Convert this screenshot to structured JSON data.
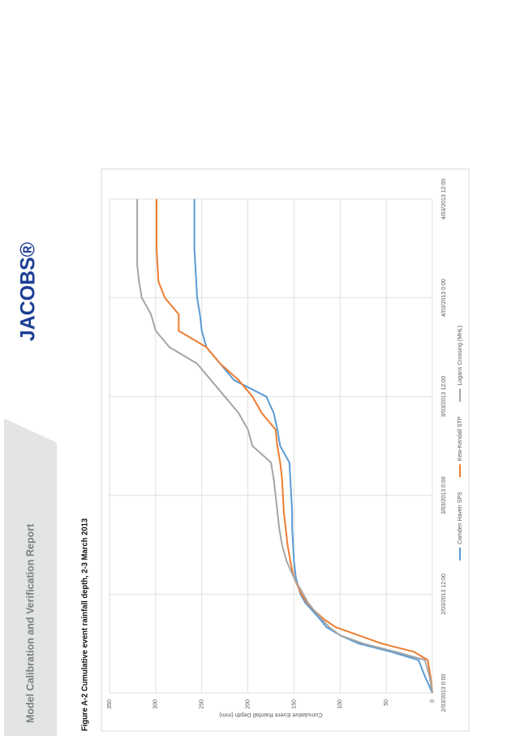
{
  "header": {
    "title": "Model Calibration and Verification Report",
    "logo": "JACOBS®"
  },
  "figure_caption": "Figure A-2 Cumulative event rainfall depth, 2-3 March 2013",
  "chart_data": {
    "type": "line",
    "ylabel": "Cumulative Event Rainfall Depth (mm)",
    "x": [
      0,
      2,
      4,
      5,
      6,
      7,
      8,
      9,
      10,
      11,
      12,
      14,
      16,
      18,
      20,
      22,
      24,
      26,
      28,
      30,
      32,
      34,
      36,
      38,
      40,
      42,
      44,
      46,
      48,
      50,
      52,
      54,
      56,
      58,
      60
    ],
    "xlim": [
      0,
      60
    ],
    "xticks": [
      {
        "value": 0,
        "label": "2/03/2013 0:00"
      },
      {
        "value": 12,
        "label": "2/03/2013 12:00"
      },
      {
        "value": 24,
        "label": "3/03/2013 0:00"
      },
      {
        "value": 36,
        "label": "3/03/2013 12:00"
      },
      {
        "value": 48,
        "label": "4/03/2013 0:00"
      },
      {
        "value": 60,
        "label": "4/03/2013 12:00"
      }
    ],
    "ylim": [
      0,
      350
    ],
    "yticks": [
      0,
      50,
      100,
      150,
      200,
      250,
      300,
      350
    ],
    "grid": true,
    "legend": "bottom",
    "series": [
      {
        "name": "Camden Haven SPS",
        "color": "#5b9bd5",
        "values": [
          0,
          8,
          15,
          45,
          80,
          100,
          115,
          122,
          130,
          138,
          143,
          148,
          150,
          151,
          152,
          152,
          153,
          154,
          155,
          165,
          168,
          172,
          180,
          215,
          230,
          245,
          250,
          252,
          255,
          256,
          257,
          258,
          258,
          258,
          258
        ]
      },
      {
        "name": "Kew-Kendall STP",
        "color": "#ed7d31",
        "values": [
          0,
          2,
          5,
          20,
          55,
          80,
          105,
          118,
          128,
          136,
          142,
          150,
          154,
          157,
          159,
          161,
          162,
          163,
          165,
          168,
          170,
          185,
          195,
          210,
          230,
          245,
          275,
          275,
          290,
          297,
          298,
          299,
          299,
          299,
          299
        ]
      },
      {
        "name": "Logans Crossing (MHL)",
        "color": "#a5a5a5",
        "values": [
          0,
          3,
          8,
          40,
          75,
          100,
          112,
          120,
          128,
          135,
          140,
          150,
          158,
          163,
          166,
          168,
          170,
          172,
          175,
          195,
          200,
          210,
          225,
          240,
          255,
          285,
          300,
          305,
          315,
          318,
          320,
          320,
          320,
          320,
          320
        ]
      }
    ]
  }
}
